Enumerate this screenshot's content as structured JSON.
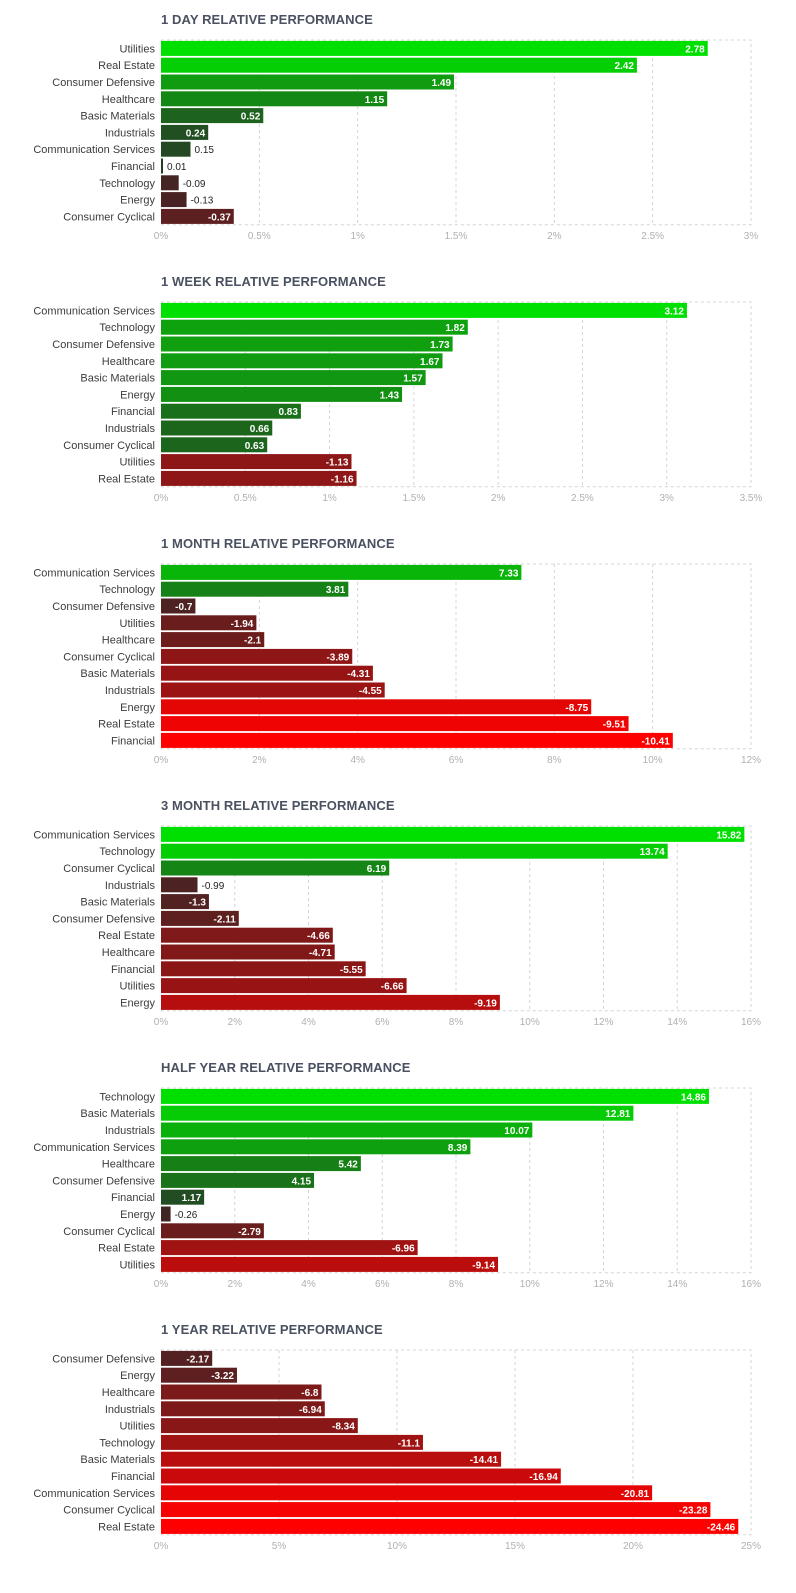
{
  "colors": {
    "positive_strong": "#00e000",
    "positive_dim": "#263a26",
    "negative_strong": "#ff0000",
    "negative_dim": "#3a2626",
    "grid": "#d4d4d4",
    "title": "#4a5160"
  },
  "chart_data": [
    {
      "type": "bar",
      "title": "1 DAY RELATIVE PERFORMANCE",
      "categories": [
        "Utilities",
        "Real Estate",
        "Consumer Defensive",
        "Healthcare",
        "Basic Materials",
        "Industrials",
        "Communication Services",
        "Financial",
        "Technology",
        "Energy",
        "Consumer Cyclical"
      ],
      "values": [
        2.78,
        2.42,
        1.49,
        1.15,
        0.52,
        0.24,
        0.15,
        0.01,
        -0.09,
        -0.13,
        -0.37
      ],
      "value_labels": [
        "2.78",
        "2.42",
        "1.49",
        "1.15",
        "0.52",
        "0.24",
        "0.15",
        "0.01",
        "-0.09",
        "-0.13",
        "-0.37"
      ],
      "xlim": [
        0,
        3
      ],
      "ticks": [
        "0%",
        "0.5%",
        "1%",
        "1.5%",
        "2%",
        "2.5%",
        "3%"
      ],
      "orientation": "horizontal",
      "bar_length": "absolute value",
      "grid": true
    },
    {
      "type": "bar",
      "title": "1 WEEK RELATIVE PERFORMANCE",
      "categories": [
        "Communication Services",
        "Technology",
        "Consumer Defensive",
        "Healthcare",
        "Basic Materials",
        "Energy",
        "Financial",
        "Industrials",
        "Consumer Cyclical",
        "Utilities",
        "Real Estate"
      ],
      "values": [
        3.12,
        1.82,
        1.73,
        1.67,
        1.57,
        1.43,
        0.83,
        0.66,
        0.63,
        -1.13,
        -1.16
      ],
      "value_labels": [
        "3.12",
        "1.82",
        "1.73",
        "1.67",
        "1.57",
        "1.43",
        "0.83",
        "0.66",
        "0.63",
        "-1.13",
        "-1.16"
      ],
      "xlim": [
        0,
        3.5
      ],
      "ticks": [
        "0%",
        "0.5%",
        "1%",
        "1.5%",
        "2%",
        "2.5%",
        "3%",
        "3.5%"
      ],
      "orientation": "horizontal",
      "bar_length": "absolute value",
      "grid": true
    },
    {
      "type": "bar",
      "title": "1 MONTH RELATIVE PERFORMANCE",
      "categories": [
        "Communication Services",
        "Technology",
        "Consumer Defensive",
        "Utilities",
        "Healthcare",
        "Consumer Cyclical",
        "Basic Materials",
        "Industrials",
        "Energy",
        "Real Estate",
        "Financial"
      ],
      "values": [
        7.33,
        3.81,
        -0.7,
        -1.94,
        -2.1,
        -3.89,
        -4.31,
        -4.55,
        -8.75,
        -9.51,
        -10.41
      ],
      "value_labels": [
        "7.33",
        "3.81",
        "-0.7",
        "-1.94",
        "-2.1",
        "-3.89",
        "-4.31",
        "-4.55",
        "-8.75",
        "-9.51",
        "-10.41"
      ],
      "xlim": [
        0,
        12
      ],
      "ticks": [
        "0%",
        "2%",
        "4%",
        "6%",
        "8%",
        "10%",
        "12%"
      ],
      "orientation": "horizontal",
      "bar_length": "absolute value",
      "grid": true
    },
    {
      "type": "bar",
      "title": "3 MONTH RELATIVE PERFORMANCE",
      "categories": [
        "Communication Services",
        "Technology",
        "Consumer Cyclical",
        "Industrials",
        "Basic Materials",
        "Consumer Defensive",
        "Real Estate",
        "Healthcare",
        "Financial",
        "Utilities",
        "Energy"
      ],
      "values": [
        15.82,
        13.74,
        6.19,
        -0.99,
        -1.3,
        -2.11,
        -4.66,
        -4.71,
        -5.55,
        -6.66,
        -9.19
      ],
      "value_labels": [
        "15.82",
        "13.74",
        "6.19",
        "-0.99",
        "-1.3",
        "-2.11",
        "-4.66",
        "-4.71",
        "-5.55",
        "-6.66",
        "-9.19"
      ],
      "xlim": [
        0,
        16
      ],
      "ticks": [
        "0%",
        "2%",
        "4%",
        "6%",
        "8%",
        "10%",
        "12%",
        "14%",
        "16%"
      ],
      "orientation": "horizontal",
      "bar_length": "absolute value",
      "grid": true
    },
    {
      "type": "bar",
      "title": "HALF YEAR RELATIVE PERFORMANCE",
      "categories": [
        "Technology",
        "Basic Materials",
        "Industrials",
        "Communication Services",
        "Healthcare",
        "Consumer Defensive",
        "Financial",
        "Energy",
        "Consumer Cyclical",
        "Real Estate",
        "Utilities"
      ],
      "values": [
        14.86,
        12.81,
        10.07,
        8.39,
        5.42,
        4.15,
        1.17,
        -0.26,
        -2.79,
        -6.96,
        -9.14
      ],
      "value_labels": [
        "14.86",
        "12.81",
        "10.07",
        "8.39",
        "5.42",
        "4.15",
        "1.17",
        "-0.26",
        "-2.79",
        "-6.96",
        "-9.14"
      ],
      "xlim": [
        0,
        16
      ],
      "ticks": [
        "0%",
        "2%",
        "4%",
        "6%",
        "8%",
        "10%",
        "12%",
        "14%",
        "16%"
      ],
      "orientation": "horizontal",
      "bar_length": "absolute value",
      "grid": true
    },
    {
      "type": "bar",
      "title": "1 YEAR RELATIVE PERFORMANCE",
      "categories": [
        "Consumer Defensive",
        "Energy",
        "Healthcare",
        "Industrials",
        "Utilities",
        "Technology",
        "Basic Materials",
        "Financial",
        "Communication Services",
        "Consumer Cyclical",
        "Real Estate"
      ],
      "values": [
        -2.17,
        -3.22,
        -6.8,
        -6.94,
        -8.34,
        -11.1,
        -14.41,
        -16.94,
        -20.81,
        -23.28,
        -24.46
      ],
      "value_labels": [
        "-2.17",
        "-3.22",
        "-6.8",
        "-6.94",
        "-8.34",
        "-11.1",
        "-14.41",
        "-16.94",
        "-20.81",
        "-23.28",
        "-24.46"
      ],
      "xlim": [
        0,
        25
      ],
      "ticks": [
        "0%",
        "5%",
        "10%",
        "15%",
        "20%",
        "25%"
      ],
      "orientation": "horizontal",
      "bar_length": "absolute value",
      "grid": true
    }
  ]
}
